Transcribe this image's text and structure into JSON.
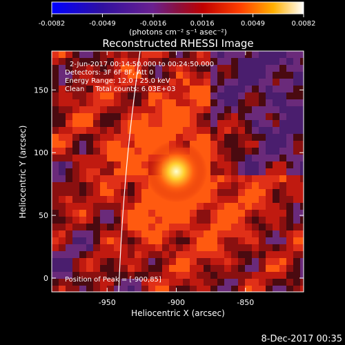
{
  "chart_data": {
    "type": "heatmap",
    "title": "Reconstructed RHESSI Image",
    "info": {
      "time_range": "2-Jun-2017 00:14:50.000 to 00:24:50.000",
      "detectors": "Detectors: 3F 6F 8F, Att 0",
      "energy": "Energy Range: 12.0 - 25.0 keV",
      "clean": "Clean     Total counts: 6.03E+03",
      "peak": "Position of Peak = [-900,85]"
    },
    "xlabel": "Heliocentric X (arcsec)",
    "ylabel": "Heliocentric Y (arcsec)",
    "x_ticks": [
      -950,
      -900,
      -850
    ],
    "x_tick_labels": [
      "-950",
      "-900",
      "-850"
    ],
    "y_ticks": [
      0,
      50,
      100,
      150
    ],
    "y_tick_labels": [
      "0",
      "50",
      "100",
      "150"
    ],
    "xlim": [
      -990,
      -808
    ],
    "ylim": [
      -11,
      181
    ],
    "peak": {
      "x": -900,
      "y": 85
    },
    "colorbar": {
      "range": [
        -0.0082,
        0.0082
      ],
      "ticks": [
        -0.0082,
        -0.0049,
        -0.0016,
        0.0016,
        0.0049,
        0.0082
      ],
      "tick_labels": [
        "-0.0082",
        "-0.0049",
        "-0.0016",
        "0.0016",
        "0.0049",
        "0.0082"
      ],
      "units_label": "(photons cm⁻² s⁻¹ asec⁻²)"
    }
  },
  "footer": {
    "timestamp": "8-Dec-2017 00:35"
  }
}
